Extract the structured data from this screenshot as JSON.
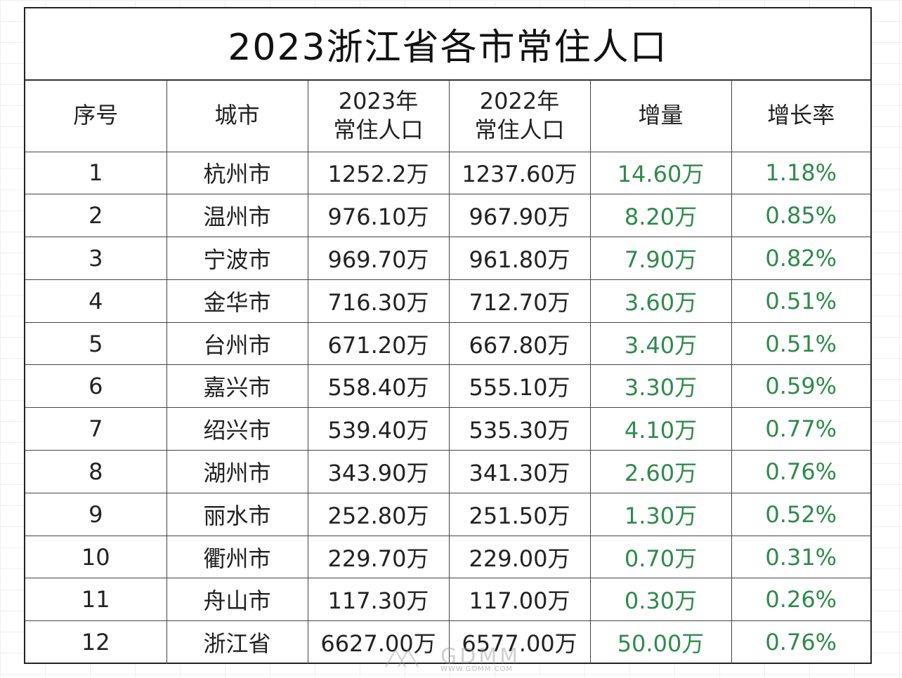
{
  "title": "2023浙江省各市常住人口",
  "headers": {
    "index": "序号",
    "city": "城市",
    "pop2023_line1": "2023年",
    "pop2023_line2": "常住人口",
    "pop2022_line1": "2022年",
    "pop2022_line2": "常住人口",
    "increase": "增量",
    "growth": "增长率"
  },
  "rows": [
    {
      "no": "1",
      "city": "杭州市",
      "pop2023": "1252.2万",
      "pop2022": "1237.60万",
      "increase": "14.60万",
      "growth": "1.18%"
    },
    {
      "no": "2",
      "city": "温州市",
      "pop2023": "976.10万",
      "pop2022": "967.90万",
      "increase": "8.20万",
      "growth": "0.85%"
    },
    {
      "no": "3",
      "city": "宁波市",
      "pop2023": "969.70万",
      "pop2022": "961.80万",
      "increase": "7.90万",
      "growth": "0.82%"
    },
    {
      "no": "4",
      "city": "金华市",
      "pop2023": "716.30万",
      "pop2022": "712.70万",
      "increase": "3.60万",
      "growth": "0.51%"
    },
    {
      "no": "5",
      "city": "台州市",
      "pop2023": "671.20万",
      "pop2022": "667.80万",
      "increase": "3.40万",
      "growth": "0.51%"
    },
    {
      "no": "6",
      "city": "嘉兴市",
      "pop2023": "558.40万",
      "pop2022": "555.10万",
      "increase": "3.30万",
      "growth": "0.59%"
    },
    {
      "no": "7",
      "city": "绍兴市",
      "pop2023": "539.40万",
      "pop2022": "535.30万",
      "increase": "4.10万",
      "growth": "0.77%"
    },
    {
      "no": "8",
      "city": "湖州市",
      "pop2023": "343.90万",
      "pop2022": "341.30万",
      "increase": "2.60万",
      "growth": "0.76%"
    },
    {
      "no": "9",
      "city": "丽水市",
      "pop2023": "252.80万",
      "pop2022": "251.50万",
      "increase": "1.30万",
      "growth": "0.52%"
    },
    {
      "no": "10",
      "city": "衢州市",
      "pop2023": "229.70万",
      "pop2022": "229.00万",
      "increase": "0.70万",
      "growth": "0.31%"
    },
    {
      "no": "11",
      "city": "舟山市",
      "pop2023": "117.30万",
      "pop2022": "117.00万",
      "increase": "0.30万",
      "growth": "0.26%"
    },
    {
      "no": "12",
      "city": "浙江省",
      "pop2023": "6627.00万",
      "pop2022": "6577.00万",
      "increase": "50.00万",
      "growth": "0.76%"
    }
  ],
  "colors": {
    "increase_text": "#2f8a4b",
    "growth_text": "#2f8a4b",
    "border": "#333333"
  },
  "watermark": {
    "text": "GDMM",
    "url": "WWW.GDMM.COM"
  }
}
